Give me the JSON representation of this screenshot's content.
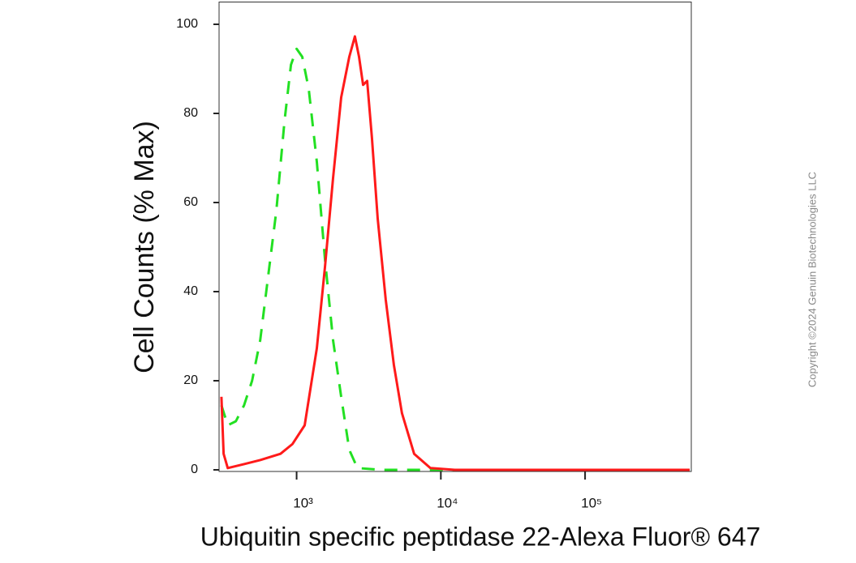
{
  "chart_data": {
    "type": "line",
    "xlabel": "Ubiquitin specific peptidase 22-Alexa Fluor® 647",
    "ylabel": "Cell Counts (% Max)",
    "annotation": "Copyright ©2024 Genuin Biotechnologies LLC",
    "xscale": "log",
    "xlim": [
      290,
      545000
    ],
    "ylim": [
      0,
      105
    ],
    "xticks": [
      {
        "value": 1000,
        "label": "10³"
      },
      {
        "value": 10000,
        "label": "10⁴"
      },
      {
        "value": 100000,
        "label": "10⁵"
      }
    ],
    "yticks": [
      0,
      20,
      40,
      60,
      80,
      100
    ],
    "series": [
      {
        "color": "#ff1a1a",
        "style": "solid",
        "x": [
          301,
          312,
          333,
          432,
          559,
          773,
          937,
          1138,
          1381,
          1573,
          1790,
          2037,
          2318,
          2537,
          2708,
          2891,
          3083,
          3327,
          3648,
          4150,
          4722,
          5374,
          6529,
          8453,
          12470,
          531000
        ],
        "values": [
          16.4,
          3.6,
          0.4,
          1.3,
          2.2,
          3.6,
          5.8,
          10,
          27.3,
          45.5,
          65.5,
          83.6,
          92.7,
          97.3,
          92.7,
          86.4,
          87.3,
          74.5,
          56.4,
          38.2,
          23.6,
          12.7,
          3.6,
          0.4,
          0,
          0
        ]
      },
      {
        "color": "#22e022",
        "style": "dashed",
        "x": [
          301,
          333,
          379,
          432,
          491,
          559,
          636,
          724,
          824,
          914,
          1000,
          1094,
          1214,
          1381,
          1573,
          1790,
          2037,
          2318,
          2638,
          3890,
          531000
        ],
        "values": [
          14.5,
          10,
          10.9,
          14.5,
          20,
          29.1,
          43.6,
          58.2,
          78.2,
          90.9,
          94.5,
          92.7,
          85.5,
          69.1,
          47.3,
          29.1,
          16.4,
          4.5,
          0.4,
          0,
          0
        ]
      }
    ]
  }
}
